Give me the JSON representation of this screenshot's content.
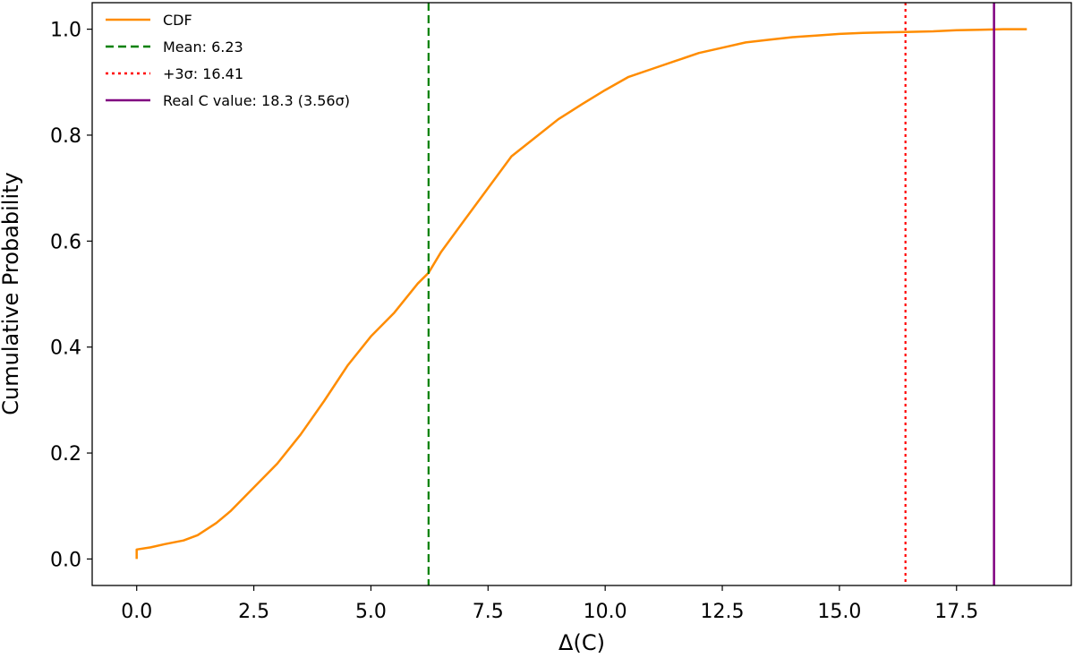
{
  "chart_data": {
    "type": "line",
    "title": "",
    "xlabel": "Δ(C)",
    "ylabel": "Cumulative Probability",
    "xlim": [
      -0.95,
      19.95
    ],
    "ylim": [
      -0.05,
      1.05
    ],
    "x_ticks": [
      "0.0",
      "2.5",
      "5.0",
      "7.5",
      "10.0",
      "12.5",
      "15.0",
      "17.5"
    ],
    "x_tick_values": [
      0,
      2.5,
      5,
      7.5,
      10,
      12.5,
      15,
      17.5
    ],
    "y_ticks": [
      "0.0",
      "0.2",
      "0.4",
      "0.6",
      "0.8",
      "1.0"
    ],
    "y_tick_values": [
      0,
      0.2,
      0.4,
      0.6,
      0.8,
      1.0
    ],
    "grid": false,
    "legend_position": "top-left",
    "series": [
      {
        "name": "CDF",
        "color": "#ff8c00",
        "style": "solid",
        "x": [
          0,
          0,
          0.3,
          0.6,
          1.0,
          1.3,
          1.7,
          2.0,
          2.5,
          3.0,
          3.5,
          4.0,
          4.5,
          5.0,
          5.5,
          6.0,
          6.23,
          6.5,
          7.0,
          7.5,
          8.0,
          8.5,
          9.0,
          9.5,
          10.0,
          10.5,
          11.0,
          11.5,
          12.0,
          12.5,
          13.0,
          13.5,
          14.0,
          14.5,
          15.0,
          15.5,
          16.0,
          16.5,
          17.0,
          17.5,
          18.0,
          18.5,
          19.0
        ],
        "y": [
          0.0,
          0.018,
          0.022,
          0.028,
          0.035,
          0.045,
          0.068,
          0.09,
          0.135,
          0.18,
          0.235,
          0.298,
          0.365,
          0.42,
          0.465,
          0.52,
          0.54,
          0.58,
          0.64,
          0.7,
          0.76,
          0.795,
          0.83,
          0.858,
          0.885,
          0.91,
          0.925,
          0.94,
          0.955,
          0.965,
          0.975,
          0.98,
          0.985,
          0.988,
          0.991,
          0.993,
          0.994,
          0.995,
          0.996,
          0.998,
          0.999,
          1.0,
          1.0
        ]
      }
    ],
    "vlines": [
      {
        "name": "Mean: 6.23",
        "x": 6.23,
        "color": "#008000",
        "style": "dashed"
      },
      {
        "name": "+3σ: 16.41",
        "x": 16.41,
        "color": "#ff0000",
        "style": "dotted"
      },
      {
        "name": "Real C value: 18.3 (3.56σ)",
        "x": 18.3,
        "color": "#800080",
        "style": "solid"
      }
    ]
  },
  "legend": {
    "items": [
      {
        "label": "CDF",
        "color": "#ff8c00",
        "style": "solid"
      },
      {
        "label": "Mean: 6.23",
        "color": "#008000",
        "style": "dashed"
      },
      {
        "label": "+3σ: 16.41",
        "color": "#ff0000",
        "style": "dotted"
      },
      {
        "label": "Real C value: 18.3 (3.56σ)",
        "color": "#800080",
        "style": "solid"
      }
    ]
  }
}
